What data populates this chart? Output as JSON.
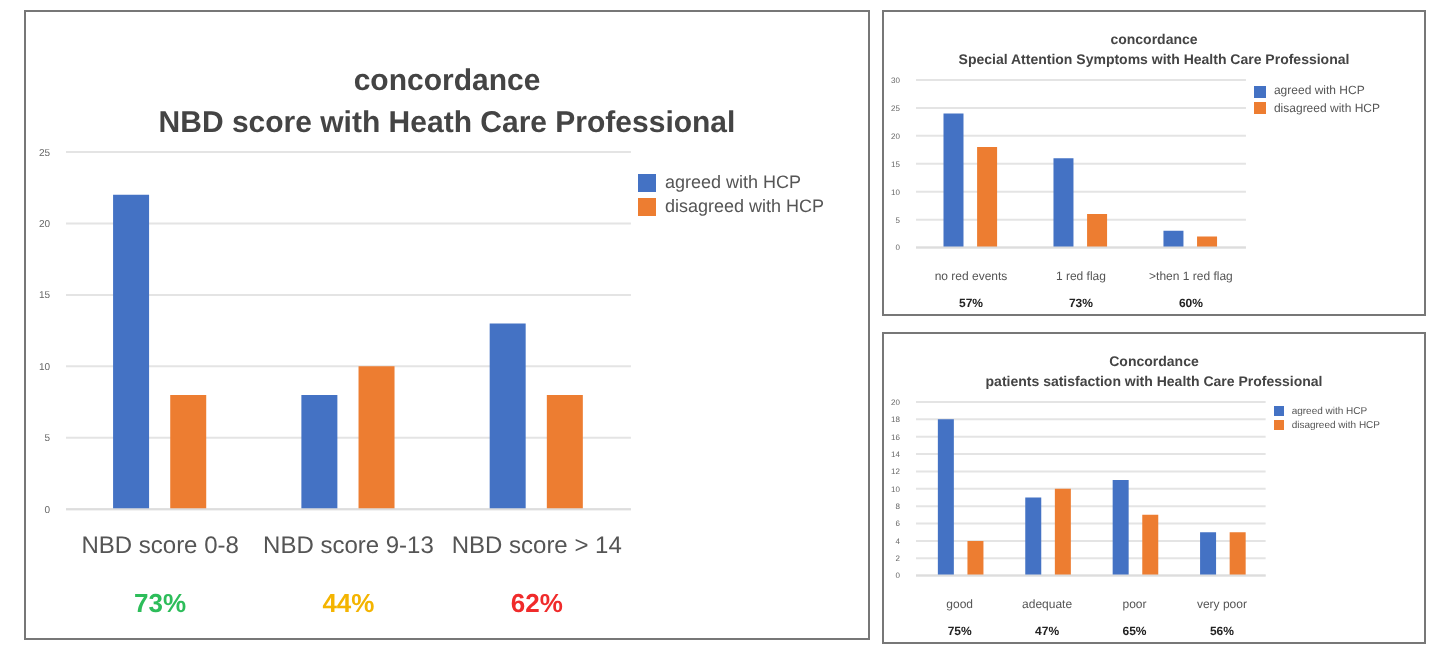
{
  "chart_data": [
    {
      "type": "bar",
      "title": "concordance",
      "subtitle": "NBD score with Heath Care Professional",
      "categories": [
        "NBD score 0-8",
        "NBD score 9-13",
        "NBD score > 14"
      ],
      "series": [
        {
          "name": "agreed with HCP",
          "color": "#4472c4",
          "values": [
            22,
            8,
            13
          ]
        },
        {
          "name": "disagreed with HCP",
          "color": "#ed7d31",
          "values": [
            8,
            10,
            8
          ]
        }
      ],
      "ylim": [
        0,
        25
      ],
      "yticks": [
        0,
        5,
        10,
        15,
        20,
        25
      ],
      "grid": "y",
      "legend": "top right",
      "annotations": [
        "73%",
        "44%",
        "62%"
      ]
    },
    {
      "type": "bar",
      "title": "concordance",
      "subtitle": "Special Attention Symptoms with Health Care Professional",
      "categories": [
        "no red events",
        "1 red flag",
        ">then  1 red flag"
      ],
      "series": [
        {
          "name": "agreed with HCP",
          "color": "#4472c4",
          "values": [
            24,
            16,
            3
          ]
        },
        {
          "name": "disagreed with HCP",
          "color": "#ed7d31",
          "values": [
            18,
            6,
            2
          ]
        }
      ],
      "ylim": [
        0,
        30
      ],
      "yticks": [
        0,
        5,
        10,
        15,
        20,
        25,
        30
      ],
      "grid": "y",
      "legend": "top right",
      "annotations": [
        "57%",
        "73%",
        "60%"
      ]
    },
    {
      "type": "bar",
      "title": "Concordance",
      "subtitle": "patients satisfaction with Health Care Professional",
      "categories": [
        "good",
        "adequate",
        "poor",
        "very poor"
      ],
      "series": [
        {
          "name": "agreed with HCP",
          "color": "#4472c4",
          "values": [
            18,
            9,
            11,
            5
          ]
        },
        {
          "name": "disagreed with HCP",
          "color": "#ed7d31",
          "values": [
            4,
            10,
            7,
            5
          ]
        }
      ],
      "ylim": [
        0,
        20
      ],
      "yticks": [
        0,
        2,
        4,
        6,
        8,
        10,
        12,
        14,
        16,
        18,
        20
      ],
      "grid": "y",
      "legend": "top right",
      "annotations": [
        "75%",
        "47%",
        "65%",
        "56%"
      ]
    }
  ]
}
